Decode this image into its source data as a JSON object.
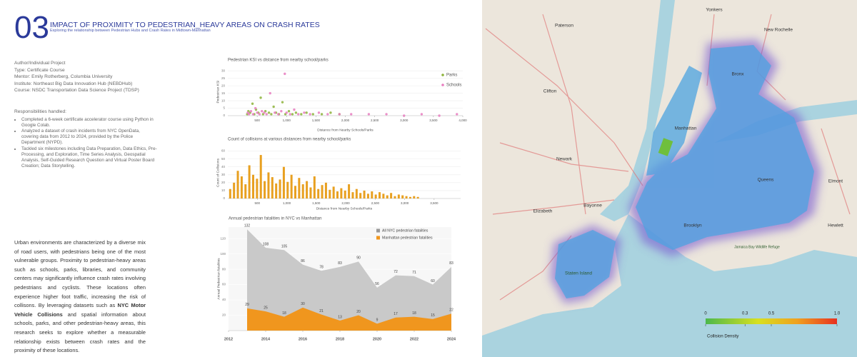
{
  "header": {
    "number": "03",
    "title": "IMPACT OF PROXIMITY TO PEDESTRIAN_HEAVY AREAS ON CRASH RATES",
    "subtitle": "Exploring the relationship between Pedestrian Hubs and Crash Rates in Midtown-Manhattan"
  },
  "project": [
    "Author/Individual Project",
    "Type: Certificate Course",
    "Mentor: Emily Rotherberg, Columbia University",
    "Institute: Northeast Big Data Innovation Hub (NEBDHub)",
    "Course: NSDC Transportation Data Science Project (TDSP)"
  ],
  "responsibilities": {
    "heading": "Responsibilities handled:",
    "items": [
      "Completed a 6-week certificate accelerator course using Python in Google Colab.",
      "Analyzed a dataset of crash incidents from NYC OpenData, covering data from 2012 to 2024, provided by the Police Department (NYPD).",
      "Tackled six milestones including Data Preparation, Data Ethics, Pre-Processing, and Exploration, Time Series Analysis, Geospatial Analysis, Self-Guided Research Question and Virtual Poster Board Creation; Data Storytelling."
    ]
  },
  "body": {
    "before": "Urban environments are characterized by a diverse mix of road users, with pedestrians being one of the most vulnerable groups. Proximity to pedestrian-heavy areas such as schools, parks, libraries, and community centers may significantly influence crash rates involving pedestrians and cyclists. These locations often experience higher foot traffic, increasing the risk of collisons. By leveraging datasets such as ",
    "bold": "NYC Motor Vehicle Collisions",
    "after": " and spatial information about schools, parks, and other pedestrian-heavy areas, this research seeks to explore whether a measurable relationship exists between crash rates and the proximity of these locations."
  },
  "chart_data": [
    {
      "type": "scatter",
      "title": "Pedestrian KSI vs distance from nearby school/parks",
      "y_label": "Pedestrian KSI",
      "x_label": "Distance from Nearby Schools/Parks",
      "xlim": [
        0,
        4000
      ],
      "ylim": [
        0,
        32
      ],
      "xticks": [
        500,
        {
          "value": 1000,
          "label": "1,000"
        },
        {
          "value": 1500,
          "label": "1,500"
        },
        {
          "value": 2000,
          "label": "2,000"
        },
        {
          "value": 2500,
          "label": "2,500"
        },
        {
          "value": 3000,
          "label": "3,000"
        },
        {
          "value": 3500,
          "label": "3,500"
        },
        {
          "value": 4000,
          "label": "4,000"
        }
      ],
      "yticks": [
        0,
        5,
        10,
        15,
        20,
        25,
        30
      ],
      "legend": "top-right",
      "series": [
        {
          "name": "Parks",
          "color": "#8db33a",
          "x": [
            330,
            350,
            380,
            420,
            450,
            480,
            520,
            560,
            600,
            640,
            700,
            740,
            780,
            820,
            870,
            930,
            980,
            1040,
            1100,
            1160,
            1250,
            1340,
            1450,
            1600,
            1750,
            1900
          ],
          "values": [
            1,
            3,
            2,
            8,
            1,
            4,
            2,
            12,
            1,
            3,
            2,
            1,
            6,
            2,
            1,
            9,
            1,
            3,
            1,
            2,
            1,
            2,
            1,
            1,
            2,
            1
          ]
        },
        {
          "name": "Schools",
          "color": "#e87dc0",
          "x": [
            340,
            360,
            395,
            430,
            470,
            500,
            540,
            580,
            620,
            660,
            720,
            800,
            860,
            910,
            970,
            1000,
            1060,
            1130,
            1200,
            1300,
            1400,
            1550,
            1700,
            1900,
            2100,
            2400,
            2700,
            3000,
            3300,
            3600,
            3900
          ],
          "values": [
            2,
            1,
            3,
            1,
            5,
            2,
            1,
            3,
            2,
            1,
            15,
            2,
            1,
            3,
            28,
            2,
            1,
            4,
            1,
            2,
            1,
            2,
            1,
            1,
            1,
            1,
            1,
            0,
            1,
            0,
            1
          ]
        }
      ]
    },
    {
      "type": "bar",
      "title": "Count of collisions at various distances from nearby school/parks",
      "y_label": "Count of Collisions",
      "x_label": "Distance from Nearby Schools/Parks",
      "xlim": [
        0,
        3950
      ],
      "ylim": [
        0,
        65
      ],
      "color": "#e8a020",
      "xticks": [
        500,
        {
          "value": 1000,
          "label": "1,000"
        },
        {
          "value": 1500,
          "label": "1,500"
        },
        {
          "value": 2000,
          "label": "2,000"
        },
        {
          "value": 2500,
          "label": "2,500"
        },
        {
          "value": 3000,
          "label": "3,000"
        },
        {
          "value": 3500,
          "label": "3,500"
        }
      ],
      "yticks": [
        0,
        10,
        20,
        30,
        40,
        50,
        60
      ],
      "x": [
        40,
        105,
        170,
        235,
        300,
        365,
        430,
        495,
        560,
        625,
        690,
        755,
        820,
        885,
        950,
        1015,
        1080,
        1145,
        1210,
        1275,
        1340,
        1405,
        1470,
        1535,
        1600,
        1665,
        1730,
        1795,
        1860,
        1925,
        1990,
        2055,
        2120,
        2185,
        2250,
        2315,
        2380,
        2445,
        2510,
        2575,
        2640,
        2705,
        2770,
        2835,
        2900,
        2965,
        3030,
        3095,
        3160,
        3225
      ],
      "values": [
        12,
        20,
        35,
        28,
        18,
        42,
        30,
        25,
        55,
        22,
        33,
        27,
        19,
        24,
        40,
        21,
        30,
        16,
        26,
        18,
        22,
        14,
        28,
        12,
        17,
        20,
        11,
        15,
        9,
        13,
        10,
        18,
        8,
        12,
        7,
        10,
        6,
        9,
        5,
        8,
        6,
        4,
        7,
        3,
        5,
        4,
        3,
        2,
        3,
        2
      ]
    },
    {
      "type": "area",
      "title": "Annual pedestrian fatalities in NYC vs Manhattan",
      "y_label": "Annual Pedestrian fatalities",
      "xlim": [
        2012,
        2024
      ],
      "ylim": [
        0,
        135
      ],
      "legend": "top-right",
      "xticks": [
        2012,
        2014,
        2016,
        2018,
        2020,
        2022,
        2024
      ],
      "yticks": [
        20,
        40,
        60,
        80,
        100,
        120
      ],
      "x": [
        2013,
        2014,
        2015,
        2016,
        2017,
        2018,
        2019,
        2020,
        2021,
        2022,
        2023,
        2024
      ],
      "series": [
        {
          "name": "All NYC pedestrian fatalities",
          "color": "#c9c9c9",
          "values": [
            132,
            108,
            105,
            86,
            78,
            83,
            90,
            56,
            72,
            71,
            60,
            83
          ]
        },
        {
          "name": "Manhattan pedestrian fatalities",
          "color": "#f0961e",
          "values": [
            29,
            25,
            18,
            30,
            21,
            13,
            20,
            9,
            17,
            18,
            15,
            22
          ]
        }
      ]
    }
  ],
  "map": {
    "labels": [
      "Yonkers",
      "Paterson",
      "New Rochelle",
      "Bronx",
      "Manhattan",
      "Newark",
      "Queens",
      "Elizabeth",
      "Brooklyn",
      "Staten Island",
      "Jamaica Bay Wildlife Refuge",
      "Clifton",
      "Bayonne",
      "Elmont",
      "Hewlett"
    ],
    "colorbar": {
      "label": "Collision Density",
      "ticks": [
        0,
        0.3,
        0.5,
        {
          "value": 1,
          "label": "1.0"
        }
      ]
    }
  }
}
